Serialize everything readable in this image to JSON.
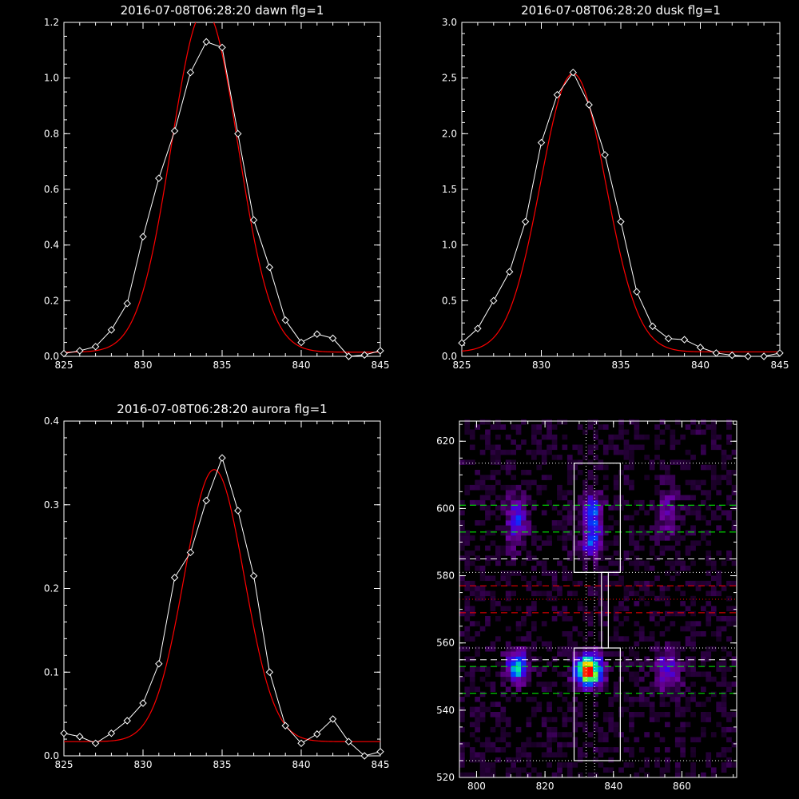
{
  "colors": {
    "background": "#000000",
    "axes": "#ffffff",
    "data": "#ffffff",
    "fit": "#ff0000",
    "green": "#00ff00",
    "red": "#ff0000"
  },
  "chart_data": [
    {
      "type": "line",
      "title": "2016-07-08T06:28:20 dawn flg=1",
      "xlim": [
        825,
        845
      ],
      "ylim": [
        0,
        1.2
      ],
      "xticks": [
        825,
        830,
        835,
        840,
        845
      ],
      "yticks": [
        0.0,
        0.2,
        0.4,
        0.6,
        0.8,
        1.0,
        1.2
      ],
      "ytick_labels": [
        "0.0",
        "0.2",
        "0.4",
        "0.6",
        "0.8",
        "1.0",
        "1.2"
      ],
      "series": [
        {
          "style": "data-diamonds",
          "x": [
            825,
            826,
            827,
            828,
            829,
            830,
            831,
            832,
            833,
            834,
            835,
            836,
            837,
            838,
            839,
            840,
            841,
            842,
            843,
            844,
            845
          ],
          "y": [
            0.01,
            0.02,
            0.035,
            0.095,
            0.19,
            0.43,
            0.64,
            0.81,
            1.02,
            1.13,
            1.11,
            0.8,
            0.49,
            0.32,
            0.13,
            0.05,
            0.08,
            0.065,
            0.0,
            0.005,
            0.02
          ]
        },
        {
          "style": "gaussian-fit",
          "amplitude": 1.23,
          "center": 833.9,
          "sigma": 2.1,
          "offset": 0.015
        }
      ]
    },
    {
      "type": "line",
      "title": "2016-07-08T06:28:20 dusk flg=1",
      "xlim": [
        825,
        845
      ],
      "ylim": [
        0,
        3.0
      ],
      "xticks": [
        825,
        830,
        835,
        840,
        845
      ],
      "yticks": [
        0.0,
        0.5,
        1.0,
        1.5,
        2.0,
        2.5,
        3.0
      ],
      "ytick_labels": [
        "0.0",
        "0.5",
        "1.0",
        "1.5",
        "2.0",
        "2.5",
        "3.0"
      ],
      "series": [
        {
          "style": "data-diamonds",
          "x": [
            825,
            826,
            827,
            828,
            829,
            830,
            831,
            832,
            833,
            834,
            835,
            836,
            837,
            838,
            839,
            840,
            841,
            842,
            843,
            844,
            845
          ],
          "y": [
            0.12,
            0.25,
            0.5,
            0.76,
            1.21,
            1.92,
            2.35,
            2.55,
            2.26,
            1.81,
            1.21,
            0.58,
            0.27,
            0.16,
            0.15,
            0.08,
            0.03,
            0.01,
            0.0,
            0.0,
            0.03
          ]
        },
        {
          "style": "gaussian-fit",
          "amplitude": 2.5,
          "center": 832.0,
          "sigma": 2.05,
          "offset": 0.04
        }
      ]
    },
    {
      "type": "line",
      "title": "2016-07-08T06:28:20 aurora flg=1",
      "xlim": [
        825,
        845
      ],
      "ylim": [
        0,
        0.4
      ],
      "xticks": [
        825,
        830,
        835,
        840,
        845
      ],
      "yticks": [
        0.0,
        0.1,
        0.2,
        0.3,
        0.4
      ],
      "ytick_labels": [
        "0.0",
        "0.1",
        "0.2",
        "0.3",
        "0.4"
      ],
      "series": [
        {
          "style": "data-diamonds",
          "x": [
            825,
            826,
            827,
            828,
            829,
            830,
            831,
            832,
            833,
            834,
            835,
            836,
            837,
            838,
            839,
            840,
            841,
            842,
            843,
            844,
            845
          ],
          "y": [
            0.027,
            0.023,
            0.015,
            0.027,
            0.042,
            0.063,
            0.11,
            0.213,
            0.243,
            0.305,
            0.356,
            0.293,
            0.215,
            0.1,
            0.036,
            0.015,
            0.026,
            0.044,
            0.017,
            0.0,
            0.005
          ]
        },
        {
          "style": "gaussian-fit",
          "amplitude": 0.325,
          "center": 834.5,
          "sigma": 1.9,
          "offset": 0.017
        }
      ]
    },
    {
      "type": "heatmap",
      "xlim": [
        795,
        876
      ],
      "ylim": [
        520,
        626
      ],
      "xticks": [
        800,
        820,
        840,
        860
      ],
      "yticks": [
        520,
        540,
        560,
        580,
        600,
        620
      ],
      "blobs": [
        {
          "x": 811,
          "y": 596,
          "sx": 2.0,
          "sy": 5.0,
          "amp": 0.35
        },
        {
          "x": 833,
          "y": 598,
          "sx": 2.0,
          "sy": 4.0,
          "amp": 0.45
        },
        {
          "x": 833,
          "y": 589,
          "sx": 2.0,
          "sy": 3.0,
          "amp": 0.4
        },
        {
          "x": 855,
          "y": 598,
          "sx": 2.5,
          "sy": 5.0,
          "amp": 0.18
        },
        {
          "x": 811,
          "y": 552,
          "sx": 2.2,
          "sy": 3.0,
          "amp": 0.55
        },
        {
          "x": 832,
          "y": 551,
          "sx": 2.6,
          "sy": 3.2,
          "amp": 1.0
        },
        {
          "x": 855,
          "y": 551,
          "sx": 2.5,
          "sy": 4.0,
          "amp": 0.3
        }
      ],
      "boxes": [
        {
          "x0": 828.5,
          "x1": 842,
          "y0": 581,
          "y1": 613.5
        },
        {
          "x0": 828.5,
          "x1": 842,
          "y0": 525,
          "y1": 558.5
        },
        {
          "x0": 836.5,
          "x1": 838.5,
          "y0": 558.5,
          "y1": 581
        }
      ],
      "vlines": [
        {
          "x": 832,
          "style": "dotted"
        },
        {
          "x": 834.5,
          "style": "dotted"
        }
      ],
      "hlines": [
        {
          "y": 613.5,
          "color": "white",
          "style": "dotted"
        },
        {
          "y": 601,
          "color": "green",
          "style": "dashed"
        },
        {
          "y": 593,
          "color": "green",
          "style": "dashed"
        },
        {
          "y": 585,
          "color": "white",
          "style": "dashed"
        },
        {
          "y": 581,
          "color": "white",
          "style": "dotted"
        },
        {
          "y": 577,
          "color": "red",
          "style": "dashed"
        },
        {
          "y": 573,
          "color": "red",
          "style": "dotted"
        },
        {
          "y": 569,
          "color": "red",
          "style": "dashed"
        },
        {
          "y": 558.5,
          "color": "white",
          "style": "dotted"
        },
        {
          "y": 555,
          "color": "white",
          "style": "dashed"
        },
        {
          "y": 553,
          "color": "green",
          "style": "dashed"
        },
        {
          "y": 545,
          "color": "green",
          "style": "dashed"
        },
        {
          "y": 525,
          "color": "white",
          "style": "dotted"
        }
      ]
    }
  ]
}
